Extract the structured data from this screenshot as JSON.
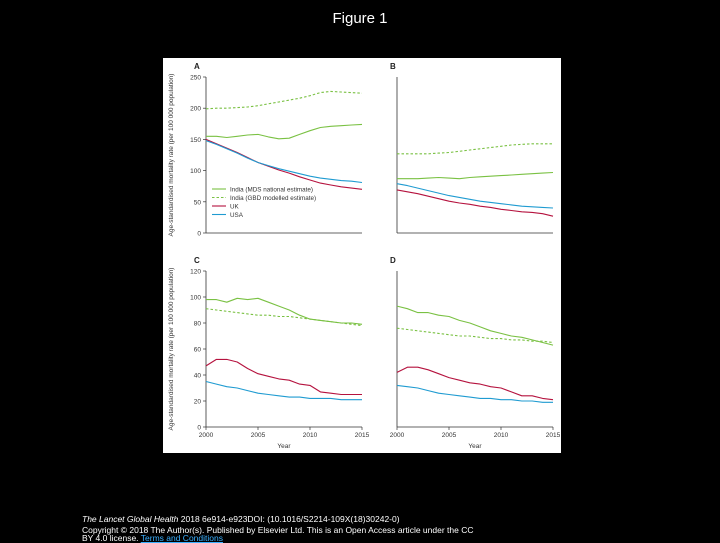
{
  "slide": {
    "title": "Figure 1"
  },
  "footer": {
    "journal": "The Lancet Global Health",
    "citation": " 2018 6e914-e923DOI: (10.1016/S2214-109X(18)30242-0)",
    "copyright": "Copyright © 2018 The Author(s). Published by Elsevier Ltd. This is an Open Access article under the CC",
    "license": "BY 4.0 license.",
    "terms_link": "Terms and Conditions"
  },
  "colors": {
    "india_mds": "#7ac143",
    "india_gbd": "#7ac143",
    "uk": "#b5123e",
    "usa": "#1f9bd1",
    "axis": "#333333"
  },
  "chart_data": [
    {
      "panel": "A",
      "type": "line",
      "ylabel": "Age-standardised mortality rate (per 100 000 population)",
      "xlabel": "",
      "ylim": [
        0,
        250
      ],
      "yticks": [
        0,
        50,
        100,
        150,
        200,
        250
      ],
      "x": [
        2000,
        2001,
        2002,
        2003,
        2004,
        2005,
        2006,
        2007,
        2008,
        2009,
        2010,
        2011,
        2012,
        2013,
        2014,
        2015
      ],
      "legend": [
        "India (MDS national estimate)",
        "India (GBD modelled estimate)",
        "UK",
        "USA"
      ],
      "series": [
        {
          "name": "India (MDS national estimate)",
          "style": "solid",
          "color": "#7ac143",
          "values": [
            155,
            155,
            153,
            155,
            157,
            158,
            154,
            151,
            152,
            158,
            164,
            169,
            171,
            172,
            173,
            174
          ]
        },
        {
          "name": "India (GBD modelled estimate)",
          "style": "dashed",
          "color": "#7ac143",
          "values": [
            199,
            200,
            200,
            201,
            202,
            204,
            207,
            210,
            213,
            216,
            220,
            225,
            227,
            226,
            225,
            224
          ]
        },
        {
          "name": "UK",
          "style": "solid",
          "color": "#b5123e",
          "values": [
            150,
            143,
            136,
            129,
            121,
            113,
            107,
            101,
            96,
            90,
            85,
            80,
            77,
            74,
            72,
            70
          ]
        },
        {
          "name": "USA",
          "style": "solid",
          "color": "#1f9bd1",
          "values": [
            148,
            142,
            135,
            128,
            120,
            113,
            108,
            103,
            99,
            95,
            91,
            88,
            86,
            84,
            83,
            81
          ]
        }
      ]
    },
    {
      "panel": "B",
      "type": "line",
      "ylim": [
        0,
        250
      ],
      "x": [
        2000,
        2001,
        2002,
        2003,
        2004,
        2005,
        2006,
        2007,
        2008,
        2009,
        2010,
        2011,
        2012,
        2013,
        2014,
        2015
      ],
      "series": [
        {
          "name": "India (MDS national estimate)",
          "style": "solid",
          "color": "#7ac143",
          "values": [
            87,
            87,
            87,
            88,
            89,
            88,
            87,
            89,
            90,
            91,
            92,
            93,
            94,
            95,
            96,
            97
          ]
        },
        {
          "name": "India (GBD modelled estimate)",
          "style": "dashed",
          "color": "#7ac143",
          "values": [
            127,
            127,
            127,
            127,
            128,
            129,
            131,
            133,
            135,
            137,
            139,
            141,
            142,
            143,
            143,
            143
          ]
        },
        {
          "name": "UK",
          "style": "solid",
          "color": "#b5123e",
          "values": [
            69,
            66,
            63,
            59,
            55,
            51,
            48,
            46,
            43,
            41,
            38,
            36,
            34,
            33,
            31,
            27
          ]
        },
        {
          "name": "USA",
          "style": "solid",
          "color": "#1f9bd1",
          "values": [
            79,
            76,
            72,
            68,
            64,
            60,
            57,
            54,
            51,
            49,
            47,
            45,
            43,
            42,
            41,
            40
          ]
        }
      ]
    },
    {
      "panel": "C",
      "type": "line",
      "ylabel": "Age-standardised mortality rate (per 100 000 population)",
      "xlabel": "Year",
      "ylim": [
        0,
        120
      ],
      "yticks": [
        0,
        20,
        40,
        60,
        80,
        100,
        120
      ],
      "xticks": [
        2000,
        2005,
        2010,
        2015
      ],
      "x": [
        2000,
        2001,
        2002,
        2003,
        2004,
        2005,
        2006,
        2007,
        2008,
        2009,
        2010,
        2011,
        2012,
        2013,
        2014,
        2015
      ],
      "series": [
        {
          "name": "India (MDS national estimate)",
          "style": "solid",
          "color": "#7ac143",
          "values": [
            98,
            98,
            96,
            99,
            98,
            99,
            96,
            93,
            90,
            86,
            83,
            82,
            81,
            80,
            80,
            79
          ]
        },
        {
          "name": "India (GBD modelled estimate)",
          "style": "dashed",
          "color": "#7ac143",
          "values": [
            91,
            90,
            89,
            88,
            87,
            86,
            86,
            85,
            85,
            84,
            83,
            82,
            81,
            80,
            79,
            78
          ]
        },
        {
          "name": "UK",
          "style": "solid",
          "color": "#b5123e",
          "values": [
            47,
            52,
            52,
            50,
            45,
            41,
            39,
            37,
            36,
            33,
            32,
            27,
            26,
            25,
            25,
            25
          ]
        },
        {
          "name": "USA",
          "style": "solid",
          "color": "#1f9bd1",
          "values": [
            35,
            33,
            31,
            30,
            28,
            26,
            25,
            24,
            23,
            23,
            22,
            22,
            22,
            21,
            21,
            21
          ]
        }
      ]
    },
    {
      "panel": "D",
      "type": "line",
      "xlabel": "Year",
      "ylim": [
        0,
        120
      ],
      "xticks": [
        2000,
        2005,
        2010,
        2015
      ],
      "x": [
        2000,
        2001,
        2002,
        2003,
        2004,
        2005,
        2006,
        2007,
        2008,
        2009,
        2010,
        2011,
        2012,
        2013,
        2014,
        2015
      ],
      "series": [
        {
          "name": "India (MDS national estimate)",
          "style": "solid",
          "color": "#7ac143",
          "values": [
            93,
            91,
            88,
            88,
            86,
            85,
            82,
            80,
            77,
            74,
            72,
            70,
            69,
            67,
            65,
            63
          ]
        },
        {
          "name": "India (GBD modelled estimate)",
          "style": "dashed",
          "color": "#7ac143",
          "values": [
            76,
            75,
            74,
            73,
            72,
            71,
            70,
            70,
            69,
            68,
            68,
            67,
            67,
            66,
            66,
            65
          ]
        },
        {
          "name": "UK",
          "style": "solid",
          "color": "#b5123e",
          "values": [
            42,
            46,
            46,
            44,
            41,
            38,
            36,
            34,
            33,
            31,
            30,
            27,
            24,
            24,
            22,
            21
          ]
        },
        {
          "name": "USA",
          "style": "solid",
          "color": "#1f9bd1",
          "values": [
            32,
            31,
            30,
            28,
            26,
            25,
            24,
            23,
            22,
            22,
            21,
            21,
            20,
            20,
            19,
            19
          ]
        }
      ]
    }
  ]
}
